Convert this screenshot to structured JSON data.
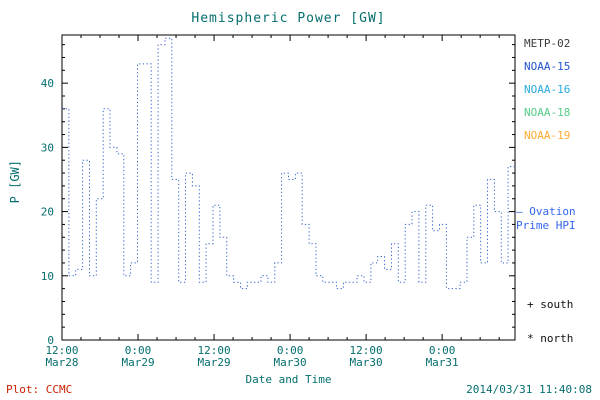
{
  "title": "Hemispheric Power [GW]",
  "footer": {
    "plot_credit": "Plot: CCMC",
    "timestamp": "2014/03/31 11:40:08"
  },
  "legend": {
    "satellites": [
      {
        "label": "METP-02",
        "color": "#3b3b3b"
      },
      {
        "label": "NOAA-15",
        "color": "#2255cc"
      },
      {
        "label": "NOAA-16",
        "color": "#29aadd"
      },
      {
        "label": "NOAA-18",
        "color": "#55cc88"
      },
      {
        "label": "NOAA-19",
        "color": "#ffaa33"
      }
    ],
    "model_line1": "— Ovation",
    "model_line2": "Prime HPI",
    "model_color": "#3366ee",
    "south_marker": "+ south",
    "north_marker": "* north"
  },
  "chart_data": {
    "type": "line",
    "step": true,
    "title": "Hemispheric Power [GW]",
    "xlabel": "Date and Time",
    "ylabel": "P [GW]",
    "ylim": [
      0,
      47.5
    ],
    "x_hours_span": 71.5,
    "hours_per_step": 1.083,
    "grid": false,
    "legend_position": "right",
    "line_color": "#3a66cc",
    "line_style": "dotted",
    "y_ticks": [
      0,
      10,
      20,
      30,
      40
    ],
    "x_ticks": [
      {
        "hour": 0,
        "time": "12:00",
        "date": "Mar28"
      },
      {
        "hour": 12,
        "time": "0:00",
        "date": "Mar29"
      },
      {
        "hour": 24,
        "time": "12:00",
        "date": "Mar29"
      },
      {
        "hour": 36,
        "time": "0:00",
        "date": "Mar30"
      },
      {
        "hour": 48,
        "time": "12:00",
        "date": "Mar30"
      },
      {
        "hour": 60,
        "time": "0:00",
        "date": "Mar31"
      }
    ],
    "series": [
      {
        "name": "Ovation Prime HPI",
        "values": [
          36,
          10,
          11,
          28,
          10,
          22,
          36,
          30,
          29,
          10,
          12,
          43,
          43,
          9,
          46,
          47,
          25,
          9,
          26,
          24,
          9,
          15,
          21,
          16,
          10,
          9,
          8,
          9,
          9,
          10,
          9,
          12,
          26,
          25,
          26,
          18,
          15,
          10,
          9,
          9,
          8,
          9,
          9,
          10,
          9,
          12,
          13,
          11,
          15,
          9,
          18,
          20,
          9,
          21,
          17,
          18,
          8,
          8,
          9,
          16,
          21,
          12,
          25,
          20,
          12,
          27
        ]
      }
    ]
  }
}
